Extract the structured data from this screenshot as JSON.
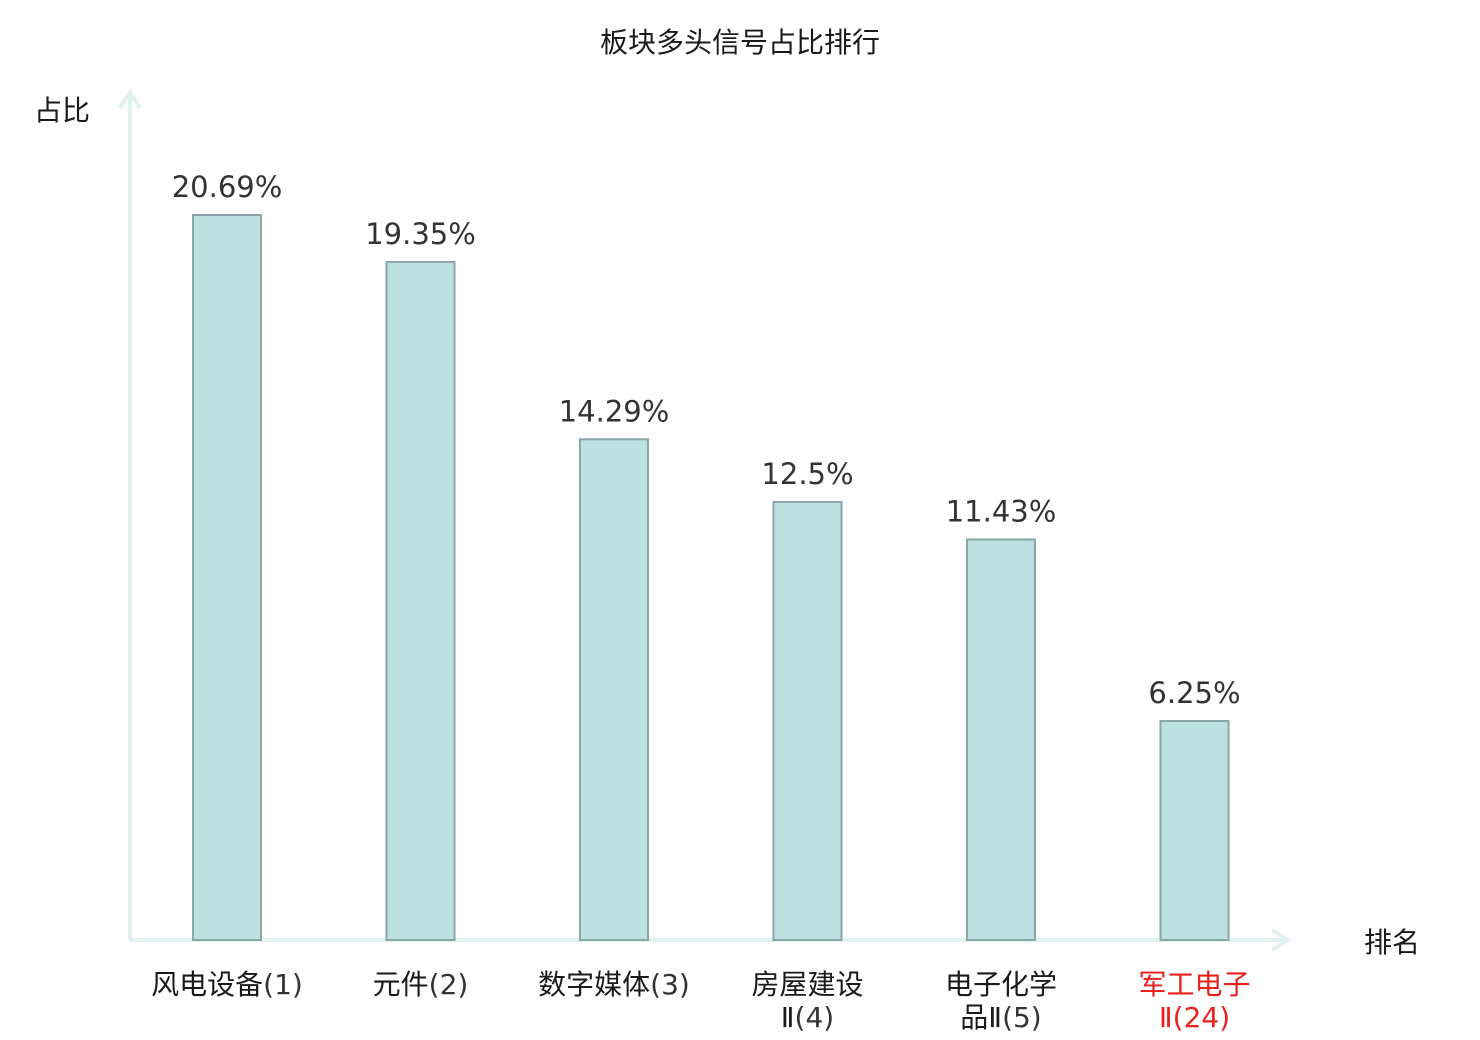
{
  "chart_data": {
    "type": "bar",
    "title": "板块多头信号占比排行",
    "xlabel": "排名",
    "ylabel": "占比",
    "categories": [
      {
        "name_lines": [
          "风电设备"
        ],
        "rank": "(1)",
        "highlight": false
      },
      {
        "name_lines": [
          "元件"
        ],
        "rank": "(2)",
        "highlight": false
      },
      {
        "name_lines": [
          "数字媒体"
        ],
        "rank": "(3)",
        "highlight": false
      },
      {
        "name_lines": [
          "房屋建设",
          "Ⅱ"
        ],
        "rank": "(4)",
        "highlight": false
      },
      {
        "name_lines": [
          "电子化学",
          "品Ⅱ"
        ],
        "rank": "(5)",
        "highlight": false
      },
      {
        "name_lines": [
          "军工电子",
          "Ⅱ"
        ],
        "rank": "(24)",
        "highlight": true
      }
    ],
    "values": [
      20.69,
      19.35,
      14.29,
      12.5,
      11.43,
      6.25
    ],
    "value_labels": [
      "20.69%",
      "19.35%",
      "14.29%",
      "12.5%",
      "11.43%",
      "6.25%"
    ],
    "ylim": [
      0,
      24.2
    ],
    "grid": false,
    "legend": "none",
    "colors": {
      "bar_fill": "#bde0e3",
      "bar_stroke": "#8aa6a8",
      "axis": "#e0f2ef",
      "text": "#1a1a1a",
      "value_text": "#333333",
      "rank_text": "#333333",
      "highlight": "#e8211e"
    }
  }
}
